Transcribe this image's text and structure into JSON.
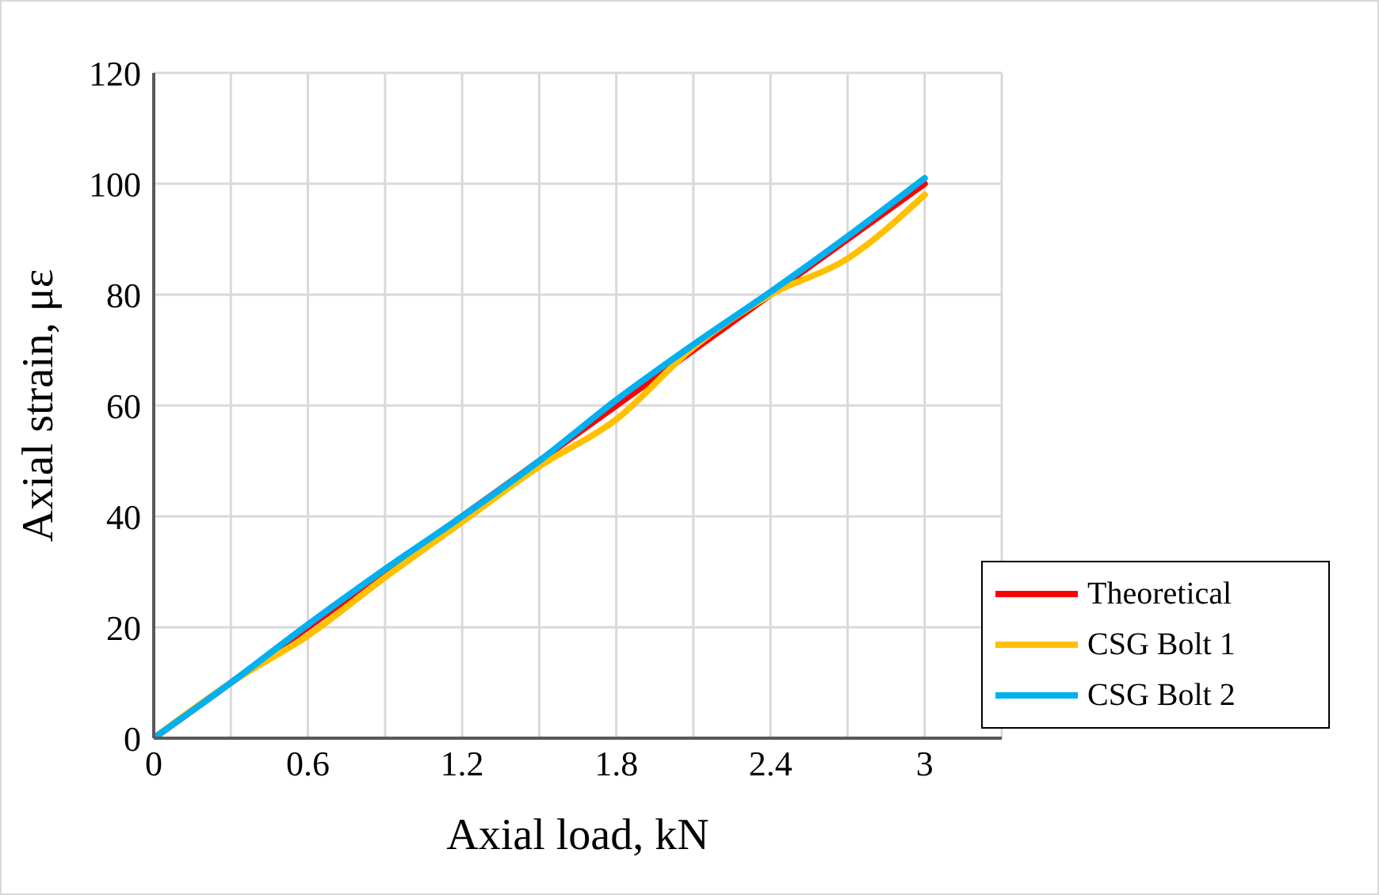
{
  "chart_data": {
    "type": "line",
    "xlabel": "Axial load, kN",
    "ylabel": "Axial strain, με",
    "x": [
      0,
      0.3,
      0.6,
      0.9,
      1.2,
      1.5,
      1.8,
      2.1,
      2.4,
      2.7,
      3
    ],
    "series": [
      {
        "name": "Theoretical",
        "color": "#ff0000",
        "values": [
          0,
          10,
          20,
          30,
          40,
          50,
          60,
          70,
          80,
          90,
          100
        ]
      },
      {
        "name": "CSG Bolt 1",
        "color": "#ffc000",
        "values": [
          0,
          10,
          18.5,
          29,
          39,
          49,
          57.5,
          70.5,
          80,
          86.5,
          98
        ]
      },
      {
        "name": "CSG Bolt 2",
        "color": "#00b0f0",
        "values": [
          0,
          10,
          20.5,
          30.5,
          40,
          50,
          61,
          71,
          80.5,
          90.5,
          101
        ]
      }
    ],
    "xlim": [
      0,
      3.3
    ],
    "xticks": [
      0,
      {
        "value": 0.3,
        "label": null
      },
      0.6,
      {
        "value": 0.9,
        "label": null
      },
      1.2,
      {
        "value": 1.5,
        "label": null
      },
      1.8,
      {
        "value": 2.1,
        "label": null
      },
      2.4,
      {
        "value": 2.7,
        "label": null
      },
      3,
      {
        "value": 3.3,
        "label": null
      }
    ],
    "ylim": [
      0,
      120
    ],
    "yticks": [
      0,
      20,
      40,
      60,
      80,
      100,
      120
    ],
    "grid": true,
    "legend": "bottom right",
    "marker": "none",
    "line_style": "solid"
  }
}
